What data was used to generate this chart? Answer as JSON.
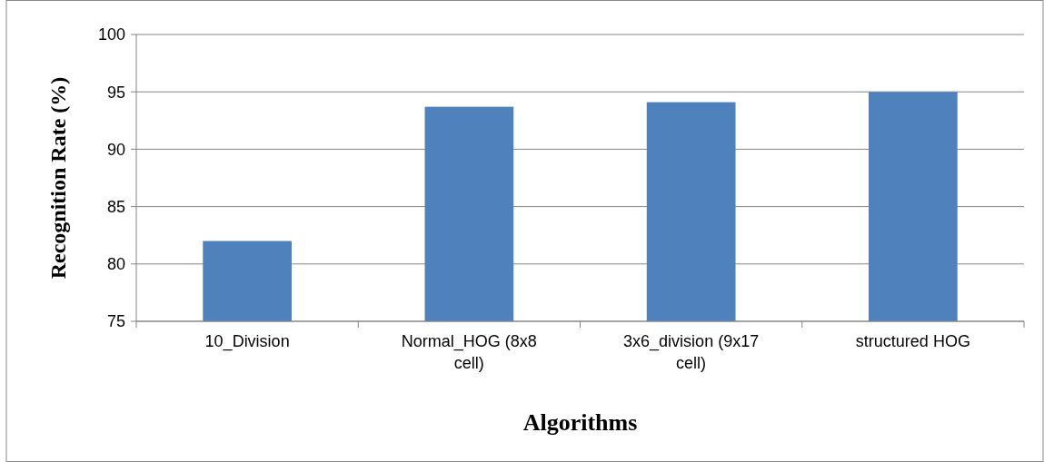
{
  "chart_data": {
    "type": "bar",
    "xlabel": "Algorithms",
    "ylabel": "Recognition Rate (%)",
    "categories": [
      "10_Division",
      "Normal_HOG (8x8 cell)",
      "3x6_division (9x17 cell)",
      "structured HOG"
    ],
    "values": [
      82,
      93.7,
      94.1,
      95
    ],
    "color": "#4f81bd",
    "ylim": [
      75,
      100
    ],
    "yticks": [
      75,
      80,
      85,
      90,
      95,
      100
    ],
    "grid": "y"
  }
}
